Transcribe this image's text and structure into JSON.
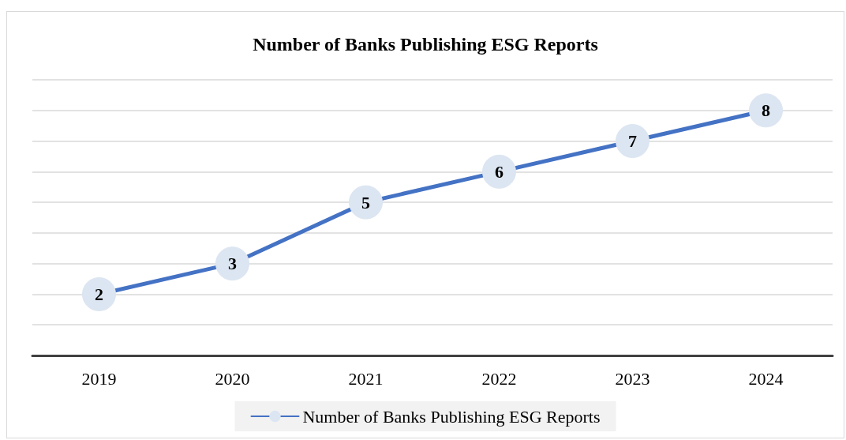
{
  "chart_data": {
    "type": "line",
    "title": "Number of Banks Publishing ESG Reports",
    "categories": [
      "2019",
      "2020",
      "2021",
      "2022",
      "2023",
      "2024"
    ],
    "series": [
      {
        "name": "Number of Banks Publishing ESG Reports",
        "color": "#4472c4",
        "values": [
          2,
          3,
          5,
          6,
          7,
          8
        ]
      }
    ],
    "ylim": [
      0,
      9
    ],
    "yticks": [
      {
        "value": 0,
        "label": null
      },
      {
        "value": 1,
        "label": null
      },
      {
        "value": 2,
        "label": null
      },
      {
        "value": 3,
        "label": null
      },
      {
        "value": 4,
        "label": null
      },
      {
        "value": 5,
        "label": null
      },
      {
        "value": 6,
        "label": null
      },
      {
        "value": 7,
        "label": null
      },
      {
        "value": 8,
        "label": null
      },
      {
        "value": 9,
        "label": null
      }
    ],
    "grid": "y",
    "tick_labels": "x",
    "legend": "bottom",
    "marker": "circle",
    "line_style": "solid",
    "data_labels": true
  }
}
